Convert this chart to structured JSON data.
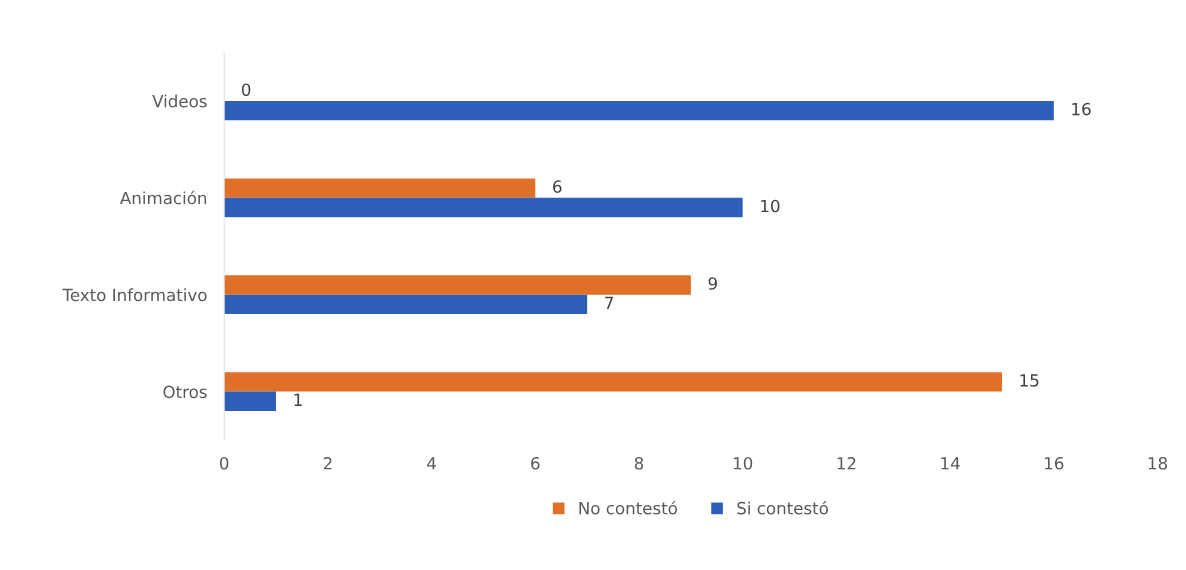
{
  "chart_data": {
    "type": "bar",
    "orientation": "horizontal",
    "categories": [
      "Videos",
      "Animación",
      "Texto Informativo",
      "Otros"
    ],
    "series": [
      {
        "name": "No contestó",
        "color": "#e07028",
        "values": [
          0,
          6,
          9,
          15
        ]
      },
      {
        "name": "Si contestó",
        "color": "#2e5fb8",
        "values": [
          16,
          10,
          7,
          1
        ]
      }
    ],
    "xlim": [
      0,
      18
    ],
    "xticks": [
      0,
      2,
      4,
      6,
      8,
      10,
      12,
      14,
      16,
      18
    ],
    "data_labels": true,
    "legend": "bottom",
    "grid": false
  }
}
